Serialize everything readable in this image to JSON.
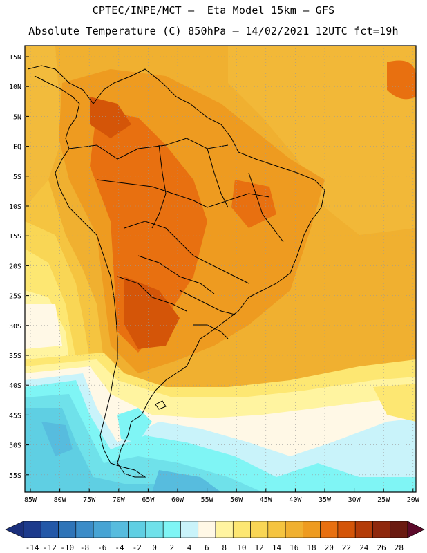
{
  "header": {
    "line1": "CPTEC/INPE/MCT –  Eta Model 15km – GFS",
    "line2": "Absolute Temperature (C) 850hPa – 14/02/2021 12UTC fct=19h"
  },
  "map": {
    "lat_labels": [
      "15N",
      "10N",
      "5N",
      "EQ",
      "5S",
      "10S",
      "15S",
      "20S",
      "25S",
      "30S",
      "35S",
      "40S",
      "45S",
      "50S",
      "55S"
    ],
    "lon_labels": [
      "85W",
      "80W",
      "75W",
      "70W",
      "65W",
      "60W",
      "55W",
      "50W",
      "45W",
      "40W",
      "35W",
      "30W",
      "25W",
      "20W"
    ]
  },
  "colorbar": {
    "labels": [
      "-14",
      "-12",
      "-10",
      "-8",
      "-6",
      "-4",
      "-2",
      "0",
      "2",
      "4",
      "6",
      "8",
      "10",
      "12",
      "14",
      "16",
      "18",
      "20",
      "22",
      "24",
      "26",
      "28"
    ],
    "colors": [
      "#1c3a8c",
      "#2358a8",
      "#2e74b8",
      "#3b8cc8",
      "#47a4d4",
      "#57bcde",
      "#5fcfe3",
      "#6fe1ea",
      "#7ff5f5",
      "#c9f3fa",
      "#fff8e6",
      "#fff4a0",
      "#fde772",
      "#f9d655",
      "#f5c440",
      "#f0b030",
      "#ee9b20",
      "#e87010",
      "#d45508",
      "#b43c08",
      "#8f280c",
      "#6a1a10"
    ],
    "left_end_color": "#1a2f7c",
    "right_end_color": "#5c0a2a"
  }
}
